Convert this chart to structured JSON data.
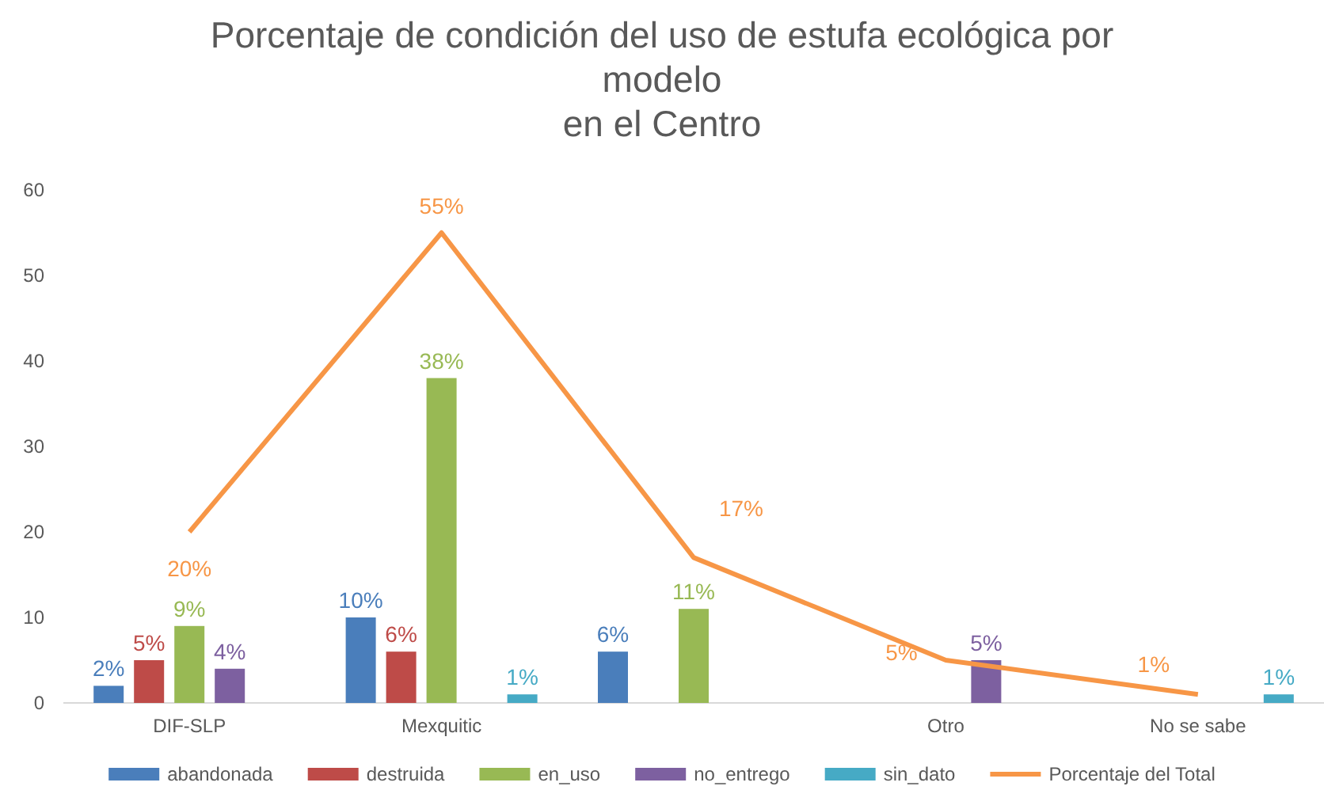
{
  "chart_data": {
    "type": "bar",
    "title": "Porcentaje de condición del uso de estufa ecológica por modelo\nen el Centro",
    "categories": [
      "DIF-SLP",
      "Mexquitic",
      null,
      "Otro",
      "No se sabe"
    ],
    "ylim": [
      0,
      60
    ],
    "yticks": [
      0,
      10,
      20,
      30,
      40,
      50,
      60
    ],
    "legend": "bottom",
    "series": [
      {
        "name": "abandonada",
        "color": "#4a7ebb",
        "values": [
          2,
          10,
          6,
          null,
          null
        ],
        "value_labels": [
          "2%",
          "10%",
          "6%",
          null,
          null
        ]
      },
      {
        "name": "destruida",
        "color": "#be4b48",
        "values": [
          5,
          6,
          null,
          null,
          null
        ],
        "value_labels": [
          "5%",
          "6%",
          null,
          null,
          null
        ]
      },
      {
        "name": "en_uso",
        "color": "#98b954",
        "values": [
          9,
          38,
          11,
          null,
          null
        ],
        "value_labels": [
          "9%",
          "38%",
          "11%",
          null,
          null
        ]
      },
      {
        "name": "no_entrego",
        "color": "#7d60a0",
        "values": [
          4,
          null,
          null,
          5,
          null
        ],
        "value_labels": [
          "4%",
          null,
          null,
          "5%",
          null
        ]
      },
      {
        "name": "sin_dato",
        "color": "#46aac5",
        "values": [
          null,
          1,
          null,
          null,
          1
        ],
        "value_labels": [
          null,
          "1%",
          null,
          null,
          "1%"
        ]
      },
      {
        "name": "Porcentaje del Total",
        "type": "line",
        "color": "#f79646",
        "values": [
          20,
          55,
          17,
          5,
          1
        ],
        "value_labels": [
          "20%",
          "55%",
          "17%",
          "5%",
          "1%"
        ]
      }
    ]
  }
}
